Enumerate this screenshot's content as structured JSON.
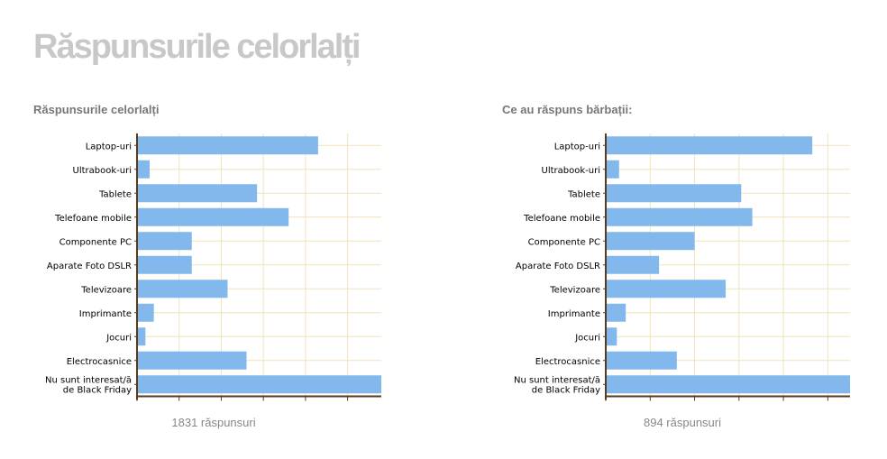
{
  "page": {
    "title": "Răspunsurile celorlalți"
  },
  "colors": {
    "bar": "#82b8ec",
    "grid": "#f1e4b8",
    "axis": "#5a3a1a",
    "title": "#c8c8c8"
  },
  "chart_data": [
    {
      "type": "bar",
      "orientation": "horizontal",
      "title": "Răspunsurile celorlalți",
      "categories": [
        "Laptop-uri",
        "Ultrabook-uri",
        "Tablete",
        "Telefoane mobile",
        "Componente PC",
        "Aparate Foto DSLR",
        "Televizoare",
        "Imprimante",
        "Jocuri",
        "Electrocasnice",
        "Nu sunt interesat/ă de Black Friday"
      ],
      "values": [
        43,
        3,
        28.5,
        36,
        13,
        13,
        21.5,
        4,
        2,
        26,
        58
      ],
      "xlim": [
        0,
        58
      ],
      "xticks": [
        0,
        10,
        20,
        30,
        40,
        50
      ],
      "grid": true,
      "footer": "1831 răspunsuri"
    },
    {
      "type": "bar",
      "orientation": "horizontal",
      "title": "Ce au răspuns bărbații:",
      "categories": [
        "Laptop-uri",
        "Ultrabook-uri",
        "Tablete",
        "Telefoane mobile",
        "Componente PC",
        "Aparate Foto DSLR",
        "Televizoare",
        "Imprimante",
        "Jocuri",
        "Electrocasnice",
        "Nu sunt interesat/ă de Black Friday"
      ],
      "values": [
        46.5,
        3,
        30.5,
        33,
        20,
        12,
        27,
        4.5,
        2.5,
        16,
        55
      ],
      "xlim": [
        0,
        55
      ],
      "xticks": [
        0,
        10,
        20,
        30,
        40,
        50
      ],
      "grid": true,
      "footer": "894 răspunsuri"
    }
  ]
}
